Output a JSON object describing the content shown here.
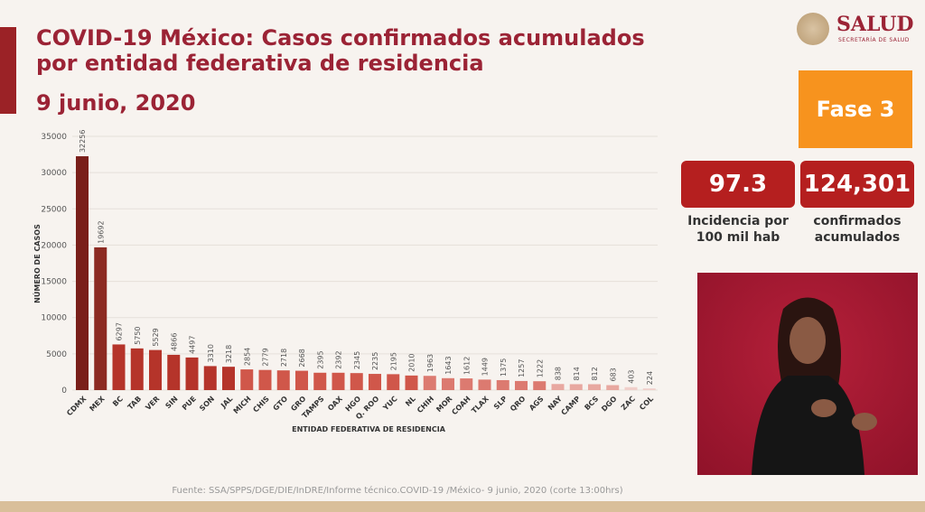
{
  "header": {
    "title": "COVID-19 México: Casos confirmados acumulados por entidad federativa de residencia",
    "date": "9 junio, 2020"
  },
  "logo": {
    "name": "SALUD",
    "subtitle": "SECRETARÍA DE SALUD"
  },
  "sidebar": {
    "phase": "Fase 3",
    "incidence_value": "97.3",
    "incidence_label": "Incidencia por 100 mil hab",
    "confirmed_value": "124,301",
    "confirmed_label": "confirmados acumulados"
  },
  "footer": {
    "source": "Fuente: SSA/SPPS/DGE/DIE/InDRE/Informe técnico.COVID-19 /México- 9 junio, 2020 (corte 13:00hrs)"
  },
  "colors": {
    "primary": "#9b2335",
    "phase": "#f7931e",
    "box": "#b51f1f"
  },
  "chart_data": {
    "type": "bar",
    "title": "",
    "xlabel": "ENTIDAD FEDERATIVA DE RESIDENCIA",
    "ylabel": "NÚMERO DE CASOS",
    "ylim": [
      0,
      35000
    ],
    "yticks": [
      0,
      5000,
      10000,
      15000,
      20000,
      25000,
      30000,
      35000
    ],
    "grid": true,
    "categories": [
      "CDMX",
      "MEX",
      "BC",
      "TAB",
      "VER",
      "SIN",
      "PUE",
      "SON",
      "JAL",
      "MICH",
      "CHIS",
      "GTO",
      "GRO",
      "TAMPS",
      "OAX",
      "HGO",
      "Q. ROO",
      "YUC",
      "NL",
      "CHIH",
      "MOR",
      "COAH",
      "TLAX",
      "SLP",
      "QRO",
      "AGS",
      "NAY",
      "CAMP",
      "BCS",
      "DGO",
      "ZAC",
      "COL"
    ],
    "values": [
      32256,
      19692,
      6297,
      5750,
      5529,
      4866,
      4497,
      3310,
      3218,
      2854,
      2779,
      2718,
      2668,
      2395,
      2392,
      2345,
      2235,
      2195,
      2010,
      1963,
      1643,
      1612,
      1449,
      1375,
      1257,
      1222,
      838,
      814,
      812,
      683,
      403,
      224
    ]
  }
}
